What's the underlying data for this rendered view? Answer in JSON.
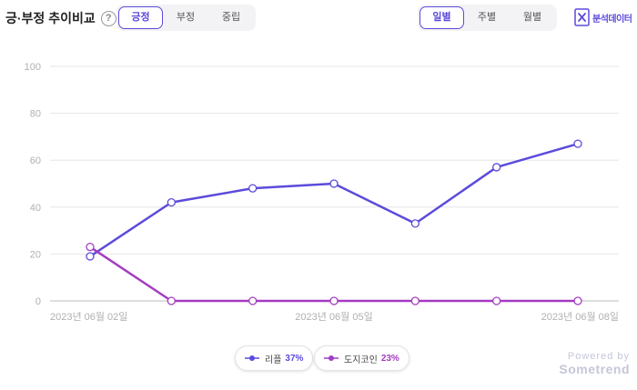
{
  "header": {
    "title": "긍·부정 추이비교",
    "help": "?",
    "sentiment_tabs": [
      {
        "label": "긍정",
        "active": true
      },
      {
        "label": "부정",
        "active": false
      },
      {
        "label": "중립",
        "active": false
      }
    ],
    "period_tabs": [
      {
        "label": "일별",
        "active": true
      },
      {
        "label": "주별",
        "active": false
      },
      {
        "label": "월별",
        "active": false
      }
    ],
    "export_label": "분석데이터"
  },
  "chart_data": {
    "type": "line",
    "x": [
      "2023년 06월 02일",
      "2023년 06월 03일",
      "2023년 06월 04일",
      "2023년 06월 05일",
      "2023년 06월 06일",
      "2023년 06월 07일",
      "2023년 06월 08일"
    ],
    "x_tick_labels": [
      "2023년 06월 02일",
      "",
      "",
      "2023년 06월 05일",
      "",
      "",
      "2023년 06월 08일"
    ],
    "y_ticks": [
      0,
      20,
      40,
      60,
      80,
      100
    ],
    "ylim": [
      0,
      100
    ],
    "grid": true,
    "legend_position": "bottom-center",
    "series": [
      {
        "name": "리플",
        "percent": "37%",
        "color": "#5b4bdb",
        "values": [
          19,
          42,
          48,
          50,
          33,
          57,
          67
        ]
      },
      {
        "name": "도지코인",
        "percent": "23%",
        "color": "#a33cc2",
        "values": [
          23,
          0,
          0,
          0,
          0,
          0,
          0
        ]
      }
    ]
  },
  "footer": {
    "powered_by": "Powered by",
    "brand": "Sometrend"
  }
}
